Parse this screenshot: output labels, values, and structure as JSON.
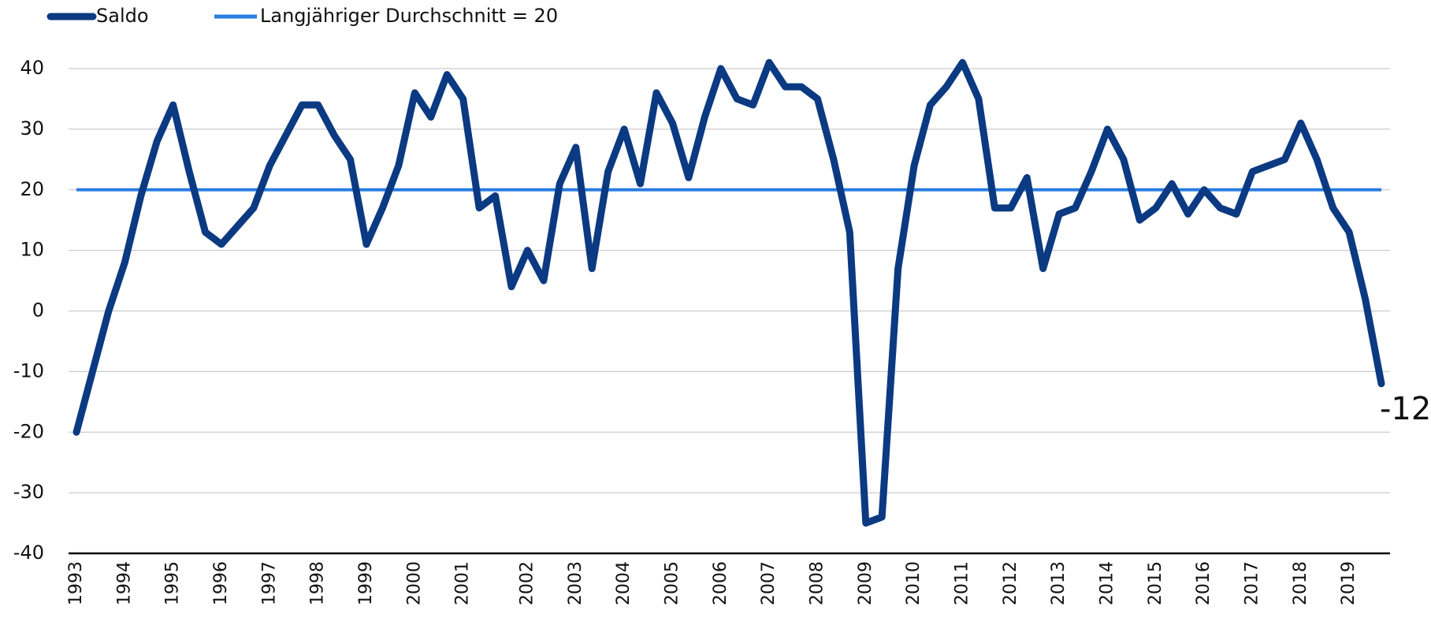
{
  "chart_data": {
    "type": "line",
    "categories": [
      "1993",
      null,
      null,
      "1994",
      null,
      null,
      "1995",
      null,
      null,
      "1996",
      null,
      null,
      "1997",
      null,
      null,
      "1998",
      null,
      null,
      "1999",
      null,
      null,
      "2000",
      null,
      null,
      "2001",
      null,
      null,
      null,
      "2002",
      null,
      null,
      "2003",
      null,
      null,
      "2004",
      null,
      null,
      "2005",
      null,
      null,
      "2006",
      null,
      null,
      "2007",
      null,
      null,
      "2008",
      null,
      null,
      "2009",
      null,
      null,
      "2010",
      null,
      null,
      "2011",
      null,
      null,
      "2012",
      null,
      null,
      "2013",
      null,
      null,
      "2014",
      null,
      null,
      "2015",
      null,
      null,
      "2016",
      null,
      null,
      "2017",
      null,
      null,
      "2018",
      null,
      null,
      "2019",
      null,
      null
    ],
    "series": [
      {
        "name": "Saldo",
        "color": "#0b3a82",
        "values": [
          -20,
          -10,
          0,
          8,
          19,
          28,
          34,
          23,
          13,
          11,
          14,
          17,
          24,
          29,
          34,
          34,
          29,
          25,
          11,
          17,
          24,
          36,
          32,
          39,
          35,
          17,
          19,
          4,
          10,
          5,
          21,
          27,
          7,
          23,
          30,
          21,
          36,
          31,
          22,
          32,
          40,
          35,
          34,
          41,
          37,
          37,
          35,
          25,
          13,
          -35,
          -34,
          7,
          24,
          34,
          37,
          41,
          35,
          17,
          17,
          22,
          7,
          16,
          17,
          23,
          30,
          25,
          15,
          17,
          21,
          16,
          20,
          17,
          16,
          23,
          24,
          25,
          31,
          25,
          17,
          13,
          2,
          -12
        ]
      }
    ],
    "reference_line": {
      "name": "Langjähriger Durchschnitt = 20",
      "value": 20,
      "color": "#2a7de1"
    },
    "ylim": [
      -40,
      40
    ],
    "yticks": [
      -40,
      -30,
      -20,
      -10,
      0,
      10,
      20,
      30,
      40
    ],
    "grid": true
  }
}
